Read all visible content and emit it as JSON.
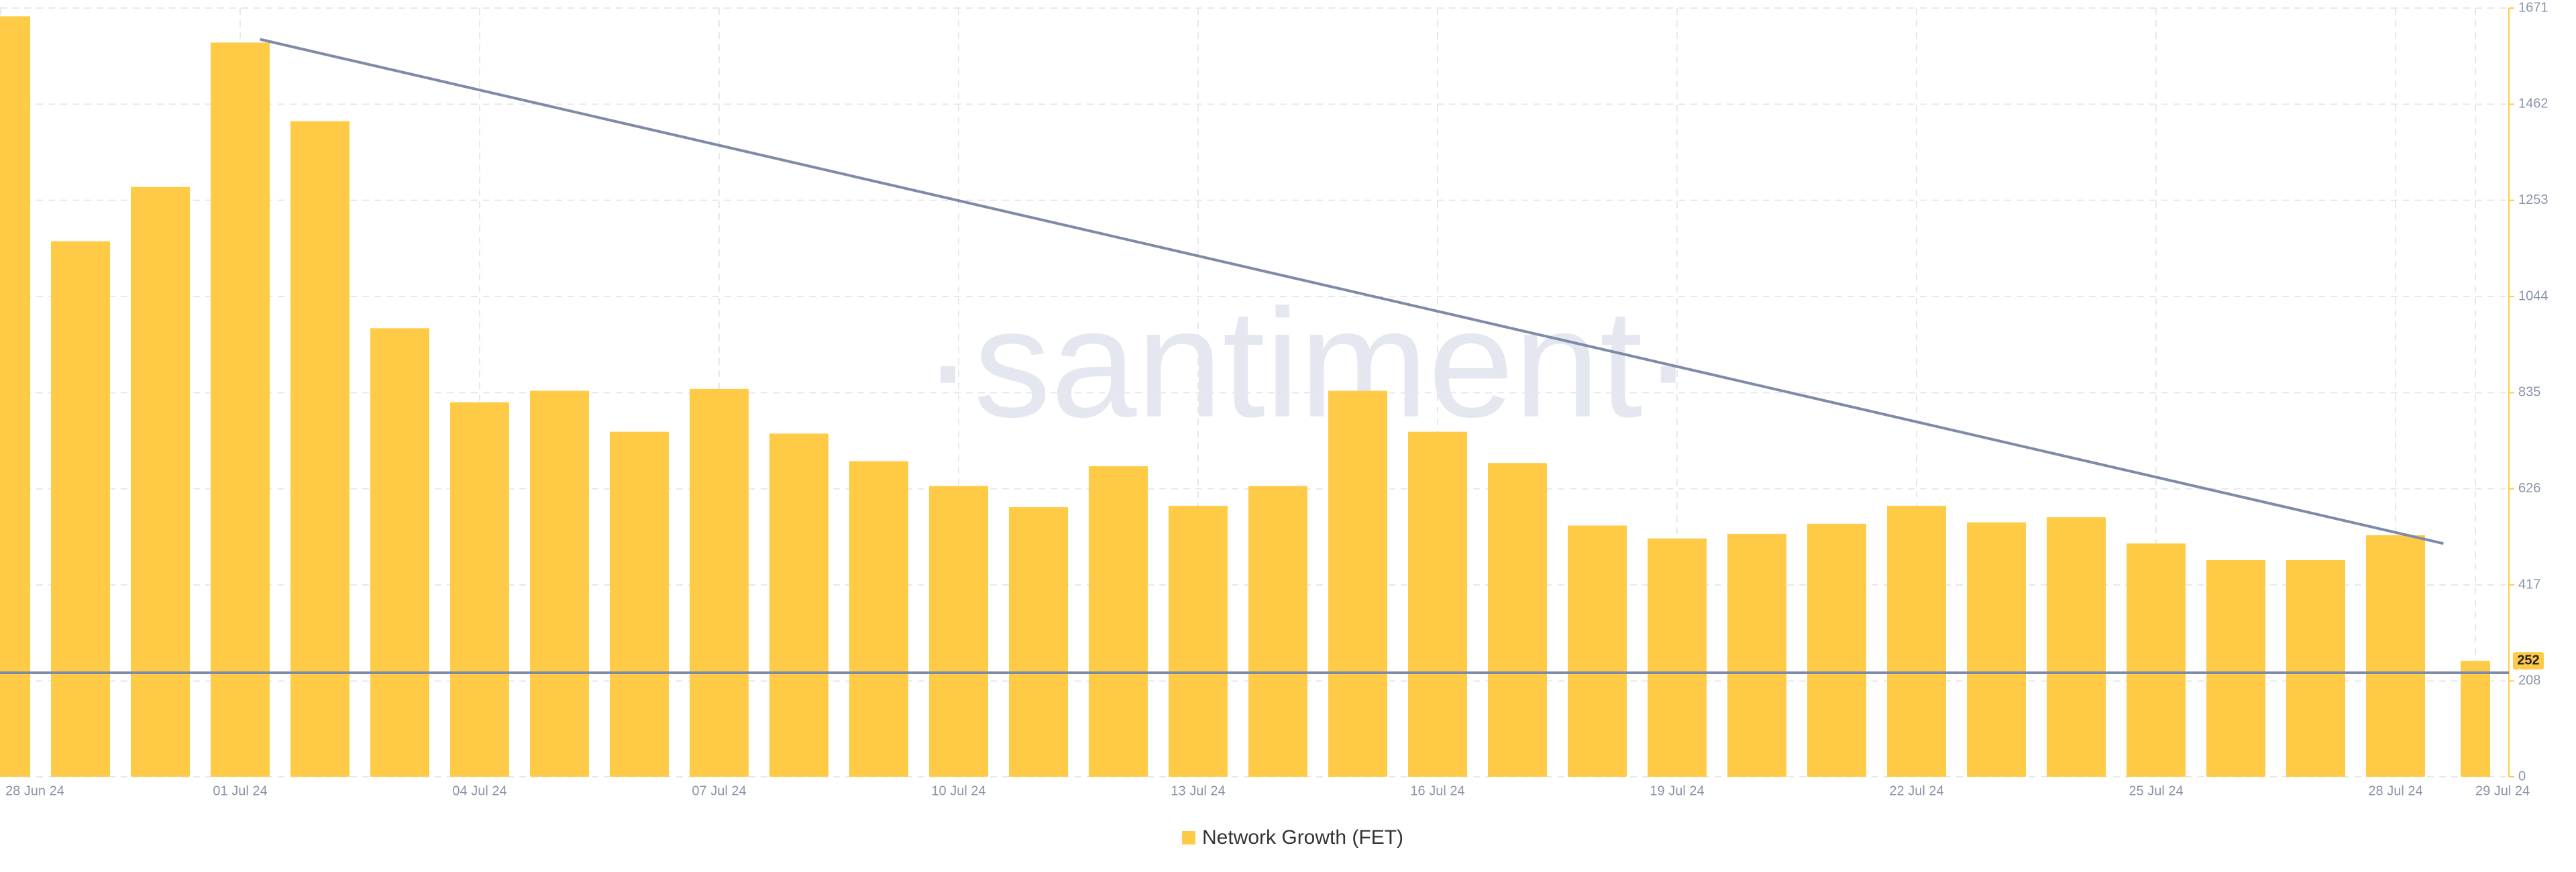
{
  "chart_data": {
    "type": "bar",
    "watermark": "·santiment·",
    "categories": [
      "28 Jun 24",
      null,
      null,
      "01 Jul 24",
      null,
      null,
      "04 Jul 24",
      null,
      null,
      "07 Jul 24",
      null,
      null,
      "10 Jul 24",
      null,
      null,
      "13 Jul 24",
      null,
      null,
      "16 Jul 24",
      null,
      null,
      "19 Jul 24",
      null,
      null,
      "22 Jul 24",
      null,
      null,
      "25 Jul 24",
      null,
      null,
      "28 Jul 24",
      "29 Jul 24"
    ],
    "series": [
      {
        "name": "Network Growth (FET)",
        "color": "#ffcb47",
        "values": [
          1653,
          1164,
          1282,
          1596,
          1425,
          975,
          814,
          839,
          750,
          843,
          746,
          686,
          632,
          586,
          675,
          589,
          632,
          839,
          750,
          682,
          546,
          518,
          528,
          550,
          589,
          553,
          564,
          507,
          471,
          471,
          525,
          252
        ]
      }
    ],
    "ylim": [
      0,
      1671
    ],
    "yticks": [
      0,
      208,
      417,
      626,
      835,
      1044,
      1253,
      1462,
      1671
    ],
    "grid": true,
    "trend_line": {
      "color": "#7d8aa8",
      "x": [
        3.25,
        30.6
      ],
      "values": [
        1603,
        507
      ]
    },
    "reference_line": {
      "color": "#7d8aa8",
      "value": 226
    }
  }
}
